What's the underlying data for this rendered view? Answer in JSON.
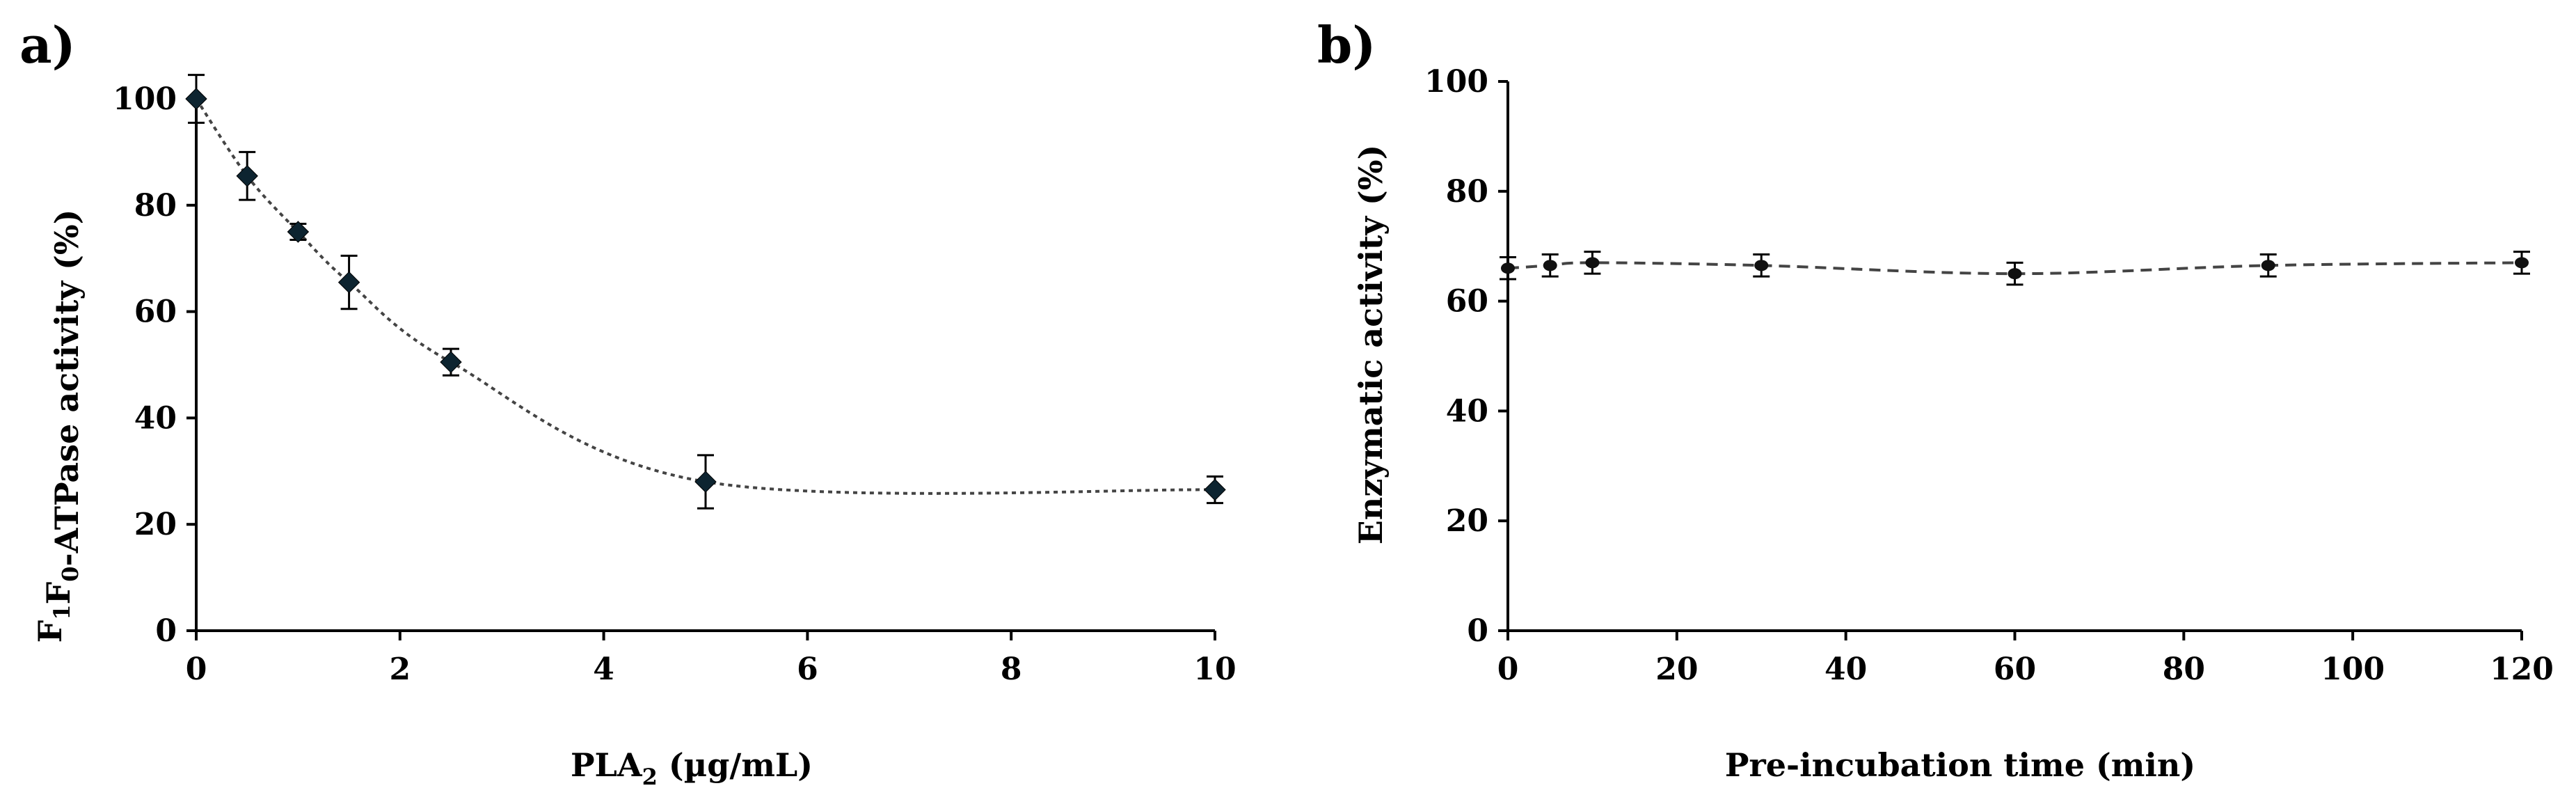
{
  "chart_data": [
    {
      "type": "scatter",
      "panel_label": "a)",
      "xlabel_main": "PLA",
      "xlabel_sub": "2",
      "xlabel_rest": " (µg/mL)",
      "ylabel_parts": [
        {
          "t": "F",
          "sub": false
        },
        {
          "t": "1",
          "sub": true
        },
        {
          "t": "F",
          "sub": false
        },
        {
          "t": "0",
          "sub": true
        },
        {
          "t": "-ATPase activity (%)",
          "sub": false
        }
      ],
      "xlim": [
        0,
        10
      ],
      "ylim": [
        0,
        100
      ],
      "xticks": [
        "0",
        "2",
        "4",
        "6",
        "8",
        "10"
      ],
      "yticks": [
        "0",
        "20",
        "40",
        "60",
        "80",
        "100"
      ],
      "grid": false,
      "trendline": "dotted smooth curve",
      "marker": "diamond",
      "series": [
        {
          "x": [
            0,
            0.5,
            1,
            1.5,
            2.5,
            5,
            10
          ],
          "y": [
            100,
            85.5,
            75,
            65.5,
            50.5,
            28,
            26.5
          ],
          "error": [
            4.5,
            4.5,
            1.5,
            5,
            2.5,
            5,
            2.5
          ]
        }
      ]
    },
    {
      "type": "scatter",
      "panel_label": "b)",
      "xlabel": "Pre-incubation time (min)",
      "ylabel": "Enzymatic activity (%)",
      "xlim": [
        0,
        120
      ],
      "ylim": [
        0,
        100
      ],
      "xticks": [
        "0",
        "20",
        "40",
        "60",
        "80",
        "100",
        "120"
      ],
      "yticks": [
        "0",
        "20",
        "40",
        "60",
        "80",
        "100"
      ],
      "grid": false,
      "trendline": "dashed smooth curve",
      "marker": "circle",
      "series": [
        {
          "x": [
            0,
            5,
            10,
            30,
            60,
            90,
            120
          ],
          "y": [
            66,
            66.5,
            67,
            66.5,
            65,
            66.5,
            67
          ],
          "error": [
            2,
            2,
            2,
            2,
            2,
            2,
            2
          ]
        }
      ]
    }
  ]
}
